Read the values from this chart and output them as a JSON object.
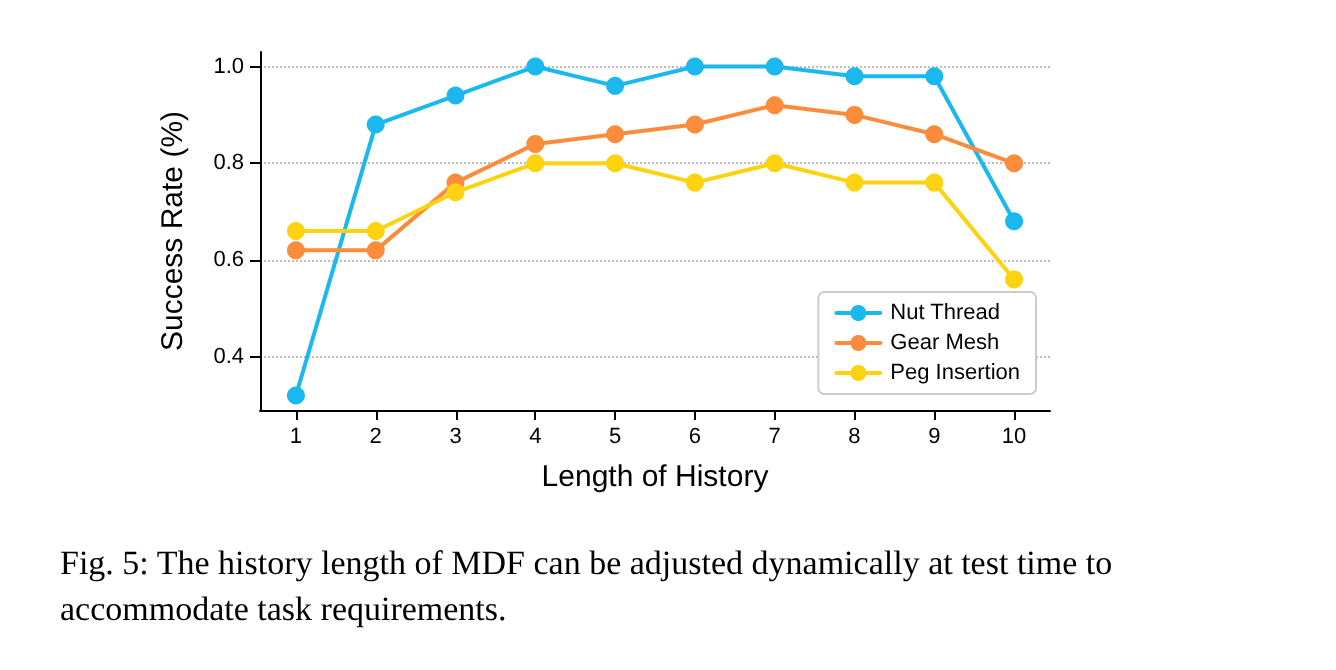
{
  "chart_data": {
    "type": "line",
    "xlabel": "Length of History",
    "ylabel": "Success Rate (%)",
    "x": [
      1,
      2,
      3,
      4,
      5,
      6,
      7,
      8,
      9,
      10
    ],
    "series": [
      {
        "name": "Nut Thread",
        "color": "#1ab8ee",
        "values": [
          0.32,
          0.88,
          0.94,
          1.0,
          0.96,
          1.0,
          1.0,
          0.98,
          0.98,
          0.68
        ]
      },
      {
        "name": "Gear Mesh",
        "color": "#fb8c3c",
        "values": [
          0.62,
          0.62,
          0.76,
          0.84,
          0.86,
          0.88,
          0.92,
          0.9,
          0.86,
          0.8
        ]
      },
      {
        "name": "Peg Insertion",
        "color": "#fdd20e",
        "values": [
          0.66,
          0.66,
          0.74,
          0.8,
          0.8,
          0.76,
          0.8,
          0.76,
          0.76,
          0.56
        ]
      }
    ],
    "xlim": [
      0.55,
      10.45
    ],
    "xticks": [
      1,
      2,
      3,
      4,
      5,
      6,
      7,
      8,
      9,
      10
    ],
    "ylim": [
      0.29,
      1.03
    ],
    "yticks": [
      0.4,
      0.6,
      0.8,
      {
        "value": 1,
        "label": "1.0"
      }
    ],
    "grid": "y",
    "legend": "bottom right",
    "marker": "circle",
    "line_style": "solid",
    "annotations": [
      "Fig. 5: The history length of MDF can be adjusted dynamically at test time to accommodate task requirements."
    ]
  }
}
